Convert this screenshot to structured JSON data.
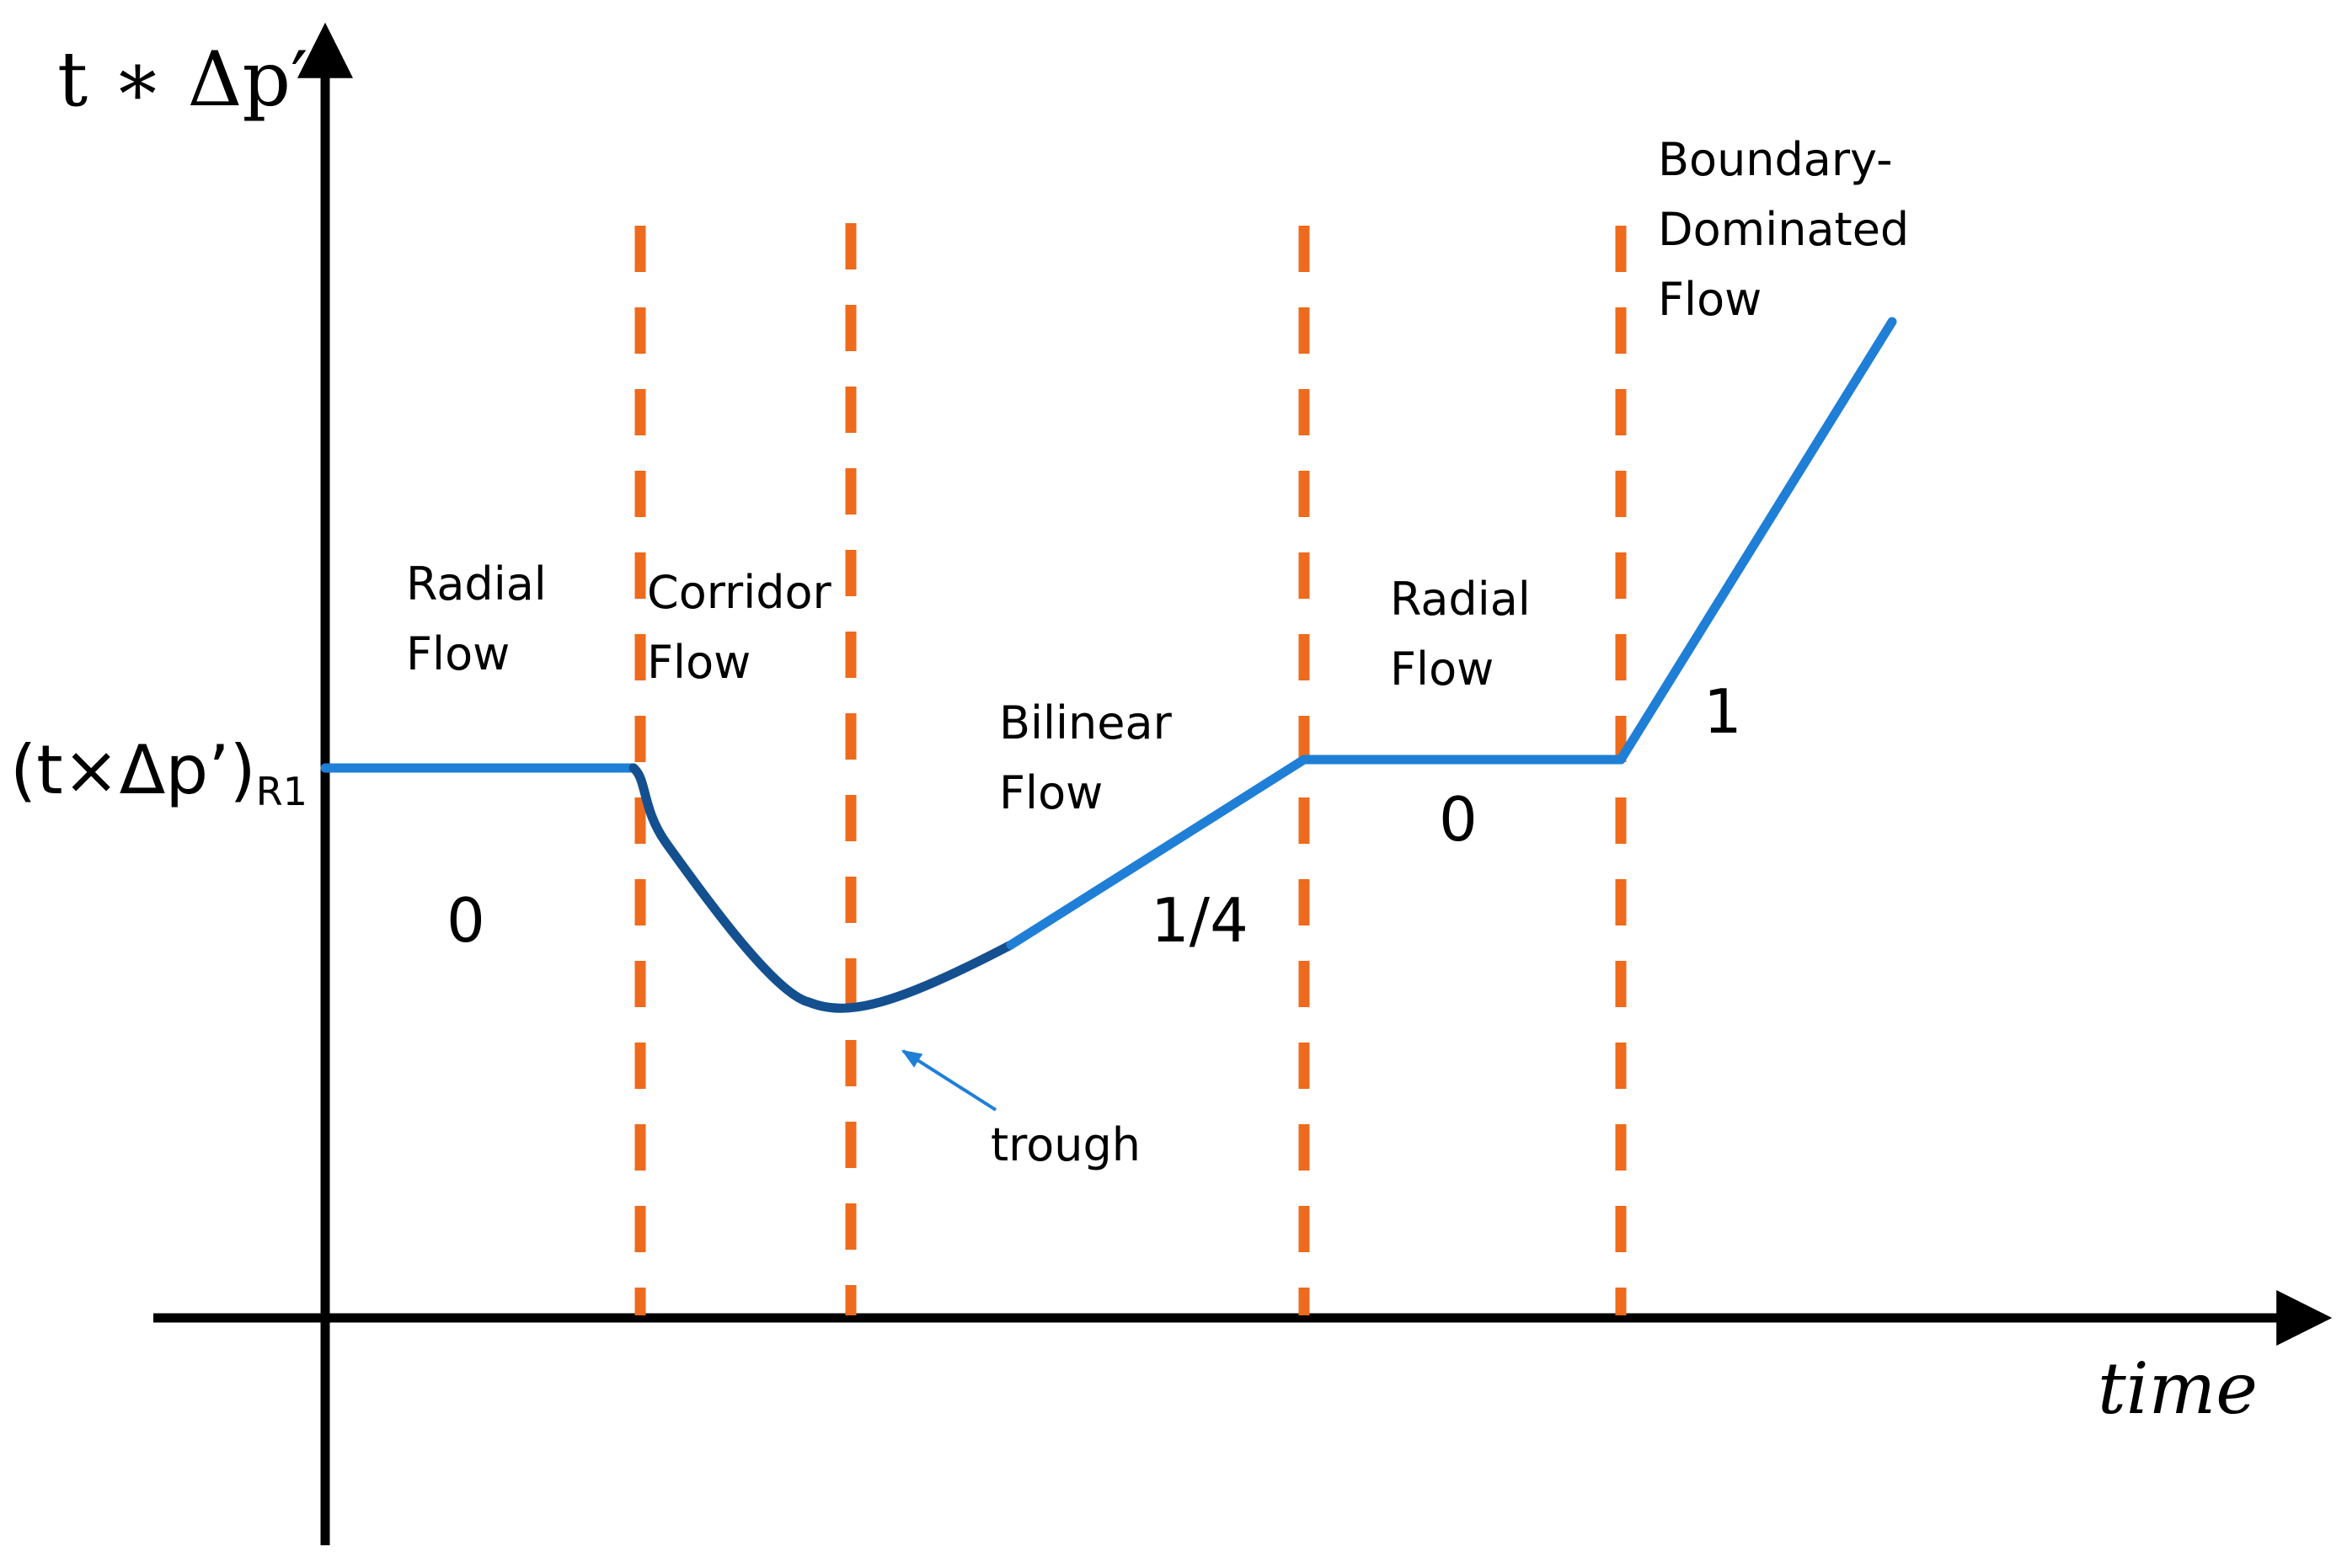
{
  "axes": {
    "y_title": "t ∗ Δp′",
    "x_title": "time",
    "reference_label": "(t×Δp’)",
    "reference_subscript": "R1"
  },
  "regions": {
    "radial_flow_1": [
      "Radial",
      "Flow"
    ],
    "corridor_flow": [
      "Corridor",
      "Flow"
    ],
    "bilinear_flow": [
      "Bilinear",
      "Flow"
    ],
    "radial_flow_2": [
      "Radial",
      "Flow"
    ],
    "boundary_dominated_flow": [
      "Boundary-",
      "Dominated",
      "Flow"
    ]
  },
  "slopes": {
    "radial_1": "0",
    "bilinear": "1/4",
    "radial_2": "0",
    "boundary": "1"
  },
  "annotations": {
    "trough": "trough"
  },
  "colors": {
    "curve": "#1f7fd6",
    "curve_dark": "#14508f",
    "dashed_lines": "#ee6a1c",
    "axes": "#000000",
    "annotation_arrow": "#1f7fd6"
  }
}
